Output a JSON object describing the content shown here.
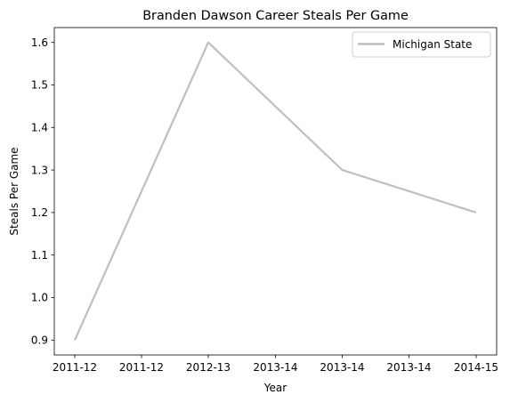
{
  "chart_data": {
    "type": "line",
    "title": "Branden Dawson Career Steals Per Game",
    "xlabel": "Year",
    "ylabel": "Steals Per Game",
    "x_tick_labels": [
      "2011-12",
      "2011-12",
      "2012-13",
      "2013-14",
      "2013-14",
      "2013-14",
      "2014-15"
    ],
    "categories": [
      "2011-12",
      "2012-13",
      "2013-14",
      "2014-15"
    ],
    "series": [
      {
        "name": "Michigan State",
        "values": [
          0.9,
          1.6,
          1.3,
          1.2
        ],
        "color": "#bfbfbf"
      }
    ],
    "yticks": [
      0.9,
      1.0,
      1.1,
      1.2,
      1.3,
      1.4,
      1.5,
      1.6
    ],
    "ylim": [
      0.865,
      1.635
    ],
    "grid": false,
    "legend_position": "top-right"
  }
}
